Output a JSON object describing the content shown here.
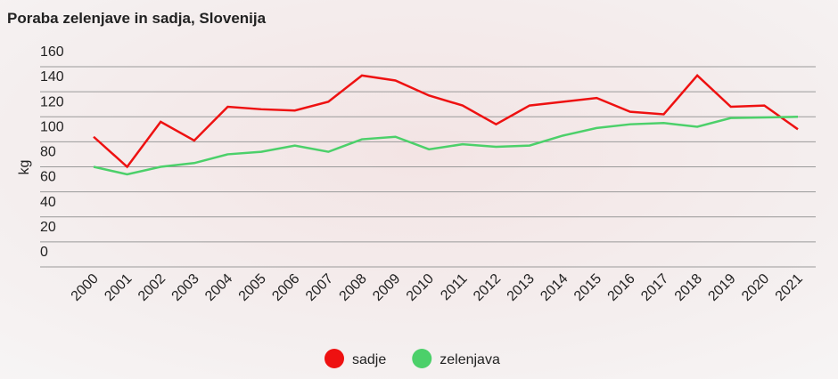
{
  "chart_data": {
    "type": "line",
    "title": "Poraba zelenjave in sadja, Slovenija",
    "y_label": "kg",
    "categories": [
      "2000",
      "2001",
      "2002",
      "2003",
      "2004",
      "2005",
      "2006",
      "2007",
      "2008",
      "2009",
      "2010",
      "2011",
      "2012",
      "2013",
      "2014",
      "2015",
      "2016",
      "2017",
      "2018",
      "2019",
      "2020",
      "2021"
    ],
    "series": [
      {
        "name": "sadje",
        "color": "#ee1111",
        "values": [
          104,
          80,
          116,
          101,
          128,
          126,
          125,
          132,
          153,
          149,
          137,
          129,
          114,
          129,
          132,
          135,
          124,
          122,
          153,
          128,
          129,
          110
        ]
      },
      {
        "name": "zelenjava",
        "color": "#4cd06a",
        "values": [
          80,
          74,
          80,
          83,
          90,
          92,
          97,
          92,
          102,
          104,
          94,
          98,
          96,
          97,
          105,
          111,
          114,
          115,
          112,
          119,
          119.5,
          120
        ]
      }
    ],
    "ylim": [
      0,
      160
    ],
    "yticks": [
      0,
      20,
      40,
      60,
      80,
      100,
      120,
      140,
      160
    ],
    "grid": true,
    "legend": "bottom"
  }
}
